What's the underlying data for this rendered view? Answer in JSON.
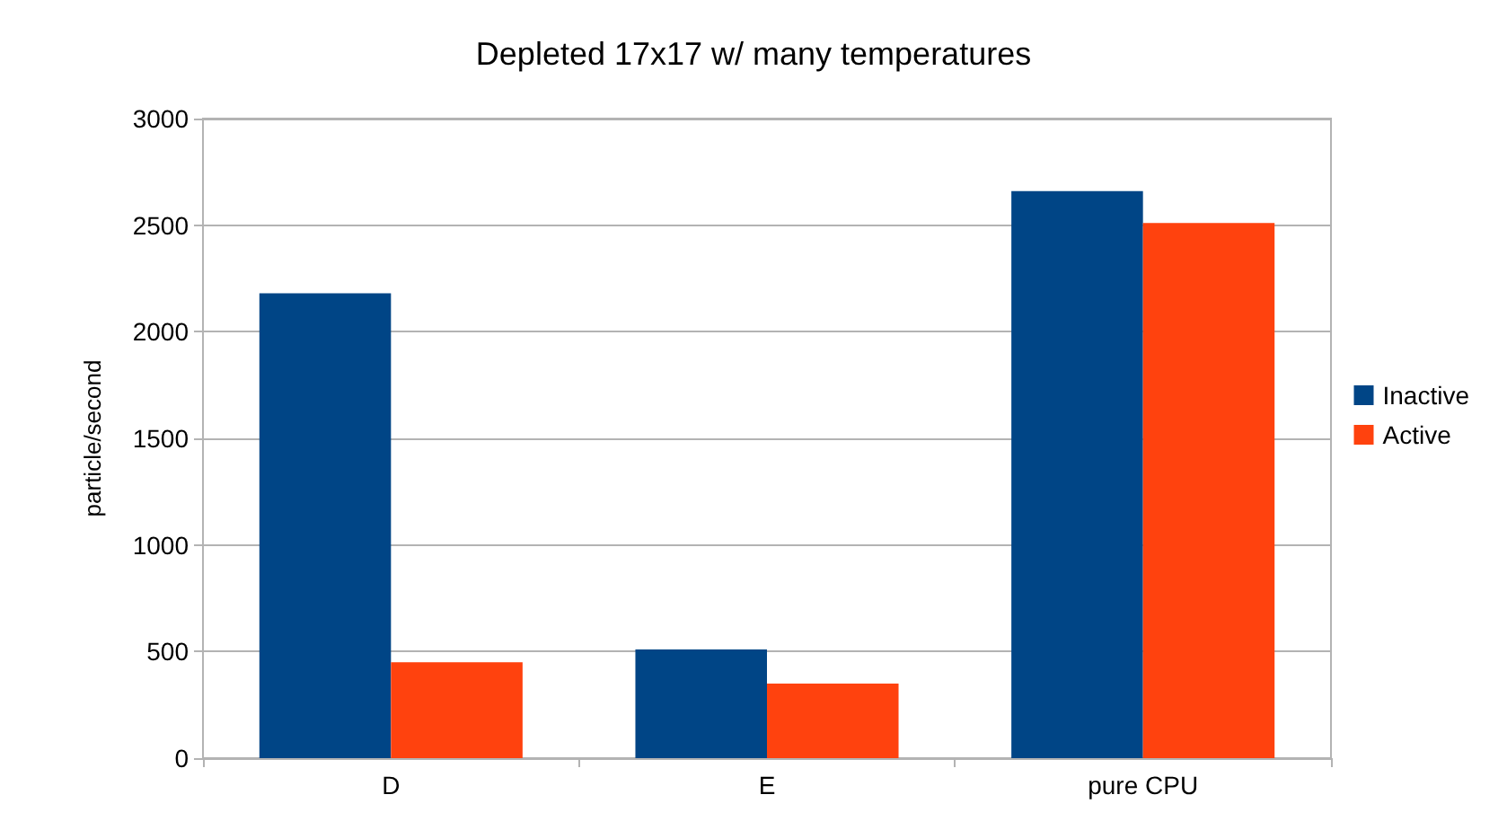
{
  "chart_data": {
    "type": "bar",
    "title": "Depleted 17x17 w/ many temperatures",
    "ylabel": "particle/second",
    "categories": [
      "D",
      "E",
      "pure CPU"
    ],
    "series": [
      {
        "name": "Inactive",
        "color": "#004586",
        "values": [
          2180,
          510,
          2660
        ]
      },
      {
        "name": "Active",
        "color": "#ff420e",
        "values": [
          450,
          350,
          2510
        ]
      }
    ],
    "ylim": [
      0,
      3000
    ],
    "yticks": [
      0,
      500,
      1000,
      1500,
      2000,
      2500,
      3000
    ],
    "grid": "y",
    "legend": "right"
  }
}
